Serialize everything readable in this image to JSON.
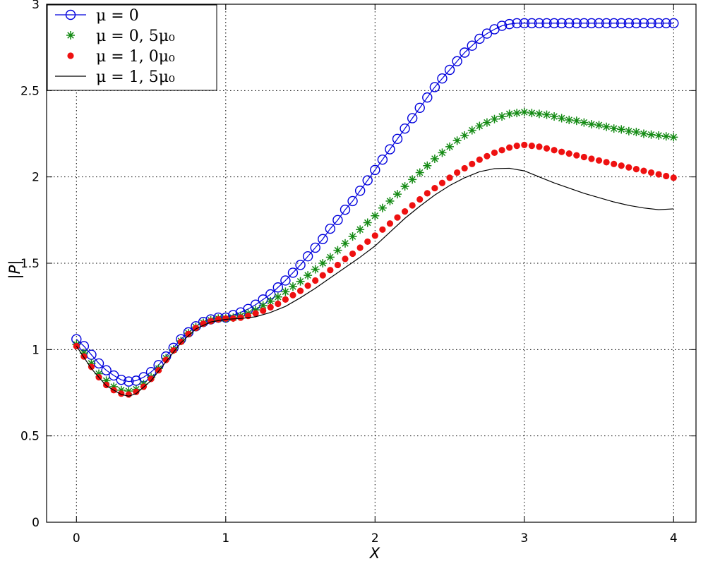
{
  "chart_data": {
    "type": "line",
    "title": "",
    "xlabel": "X",
    "ylabel": "|P|",
    "xlim": [
      -0.2,
      4.15
    ],
    "ylim": [
      0,
      3
    ],
    "xticks": [
      0,
      1,
      2,
      3,
      4
    ],
    "yticks": [
      0,
      0.5,
      1,
      1.5,
      2,
      2.5,
      3
    ],
    "xtick_labels": [
      "0",
      "1",
      "2",
      "3",
      "4"
    ],
    "ytick_labels": [
      "0",
      "0.5",
      "1",
      "1.5",
      "2",
      "2.5",
      "3"
    ],
    "grid": true,
    "legend_position": "top-left",
    "series": [
      {
        "name": "μ = 0",
        "marker": "open-circle",
        "color": "#0000dd",
        "x": [
          0,
          0.05,
          0.1,
          0.15,
          0.2,
          0.25,
          0.3,
          0.35,
          0.4,
          0.45,
          0.5,
          0.55,
          0.6,
          0.65,
          0.7,
          0.75,
          0.8,
          0.85,
          0.9,
          0.95,
          1.0,
          1.05,
          1.1,
          1.15,
          1.2,
          1.25,
          1.3,
          1.35,
          1.4,
          1.45,
          1.5,
          1.55,
          1.6,
          1.65,
          1.7,
          1.75,
          1.8,
          1.85,
          1.9,
          1.95,
          2.0,
          2.05,
          2.1,
          2.15,
          2.2,
          2.25,
          2.3,
          2.35,
          2.4,
          2.45,
          2.5,
          2.55,
          2.6,
          2.65,
          2.7,
          2.75,
          2.8,
          2.85,
          2.9,
          2.95,
          3.0,
          3.05,
          3.1,
          3.15,
          3.2,
          3.25,
          3.3,
          3.35,
          3.4,
          3.45,
          3.5,
          3.55,
          3.6,
          3.65,
          3.7,
          3.75,
          3.8,
          3.85,
          3.9,
          3.95,
          4.0
        ],
        "y": [
          1.06,
          1.02,
          0.97,
          0.92,
          0.88,
          0.85,
          0.825,
          0.815,
          0.82,
          0.84,
          0.87,
          0.91,
          0.96,
          1.01,
          1.06,
          1.1,
          1.135,
          1.16,
          1.175,
          1.185,
          1.185,
          1.2,
          1.215,
          1.235,
          1.26,
          1.29,
          1.32,
          1.36,
          1.4,
          1.445,
          1.49,
          1.54,
          1.59,
          1.64,
          1.7,
          1.75,
          1.81,
          1.86,
          1.92,
          1.98,
          2.04,
          2.1,
          2.16,
          2.22,
          2.28,
          2.34,
          2.4,
          2.46,
          2.52,
          2.57,
          2.62,
          2.67,
          2.72,
          2.76,
          2.8,
          2.83,
          2.855,
          2.875,
          2.885,
          2.89,
          2.89,
          2.89,
          2.89,
          2.89,
          2.89,
          2.89,
          2.89,
          2.89,
          2.89,
          2.89,
          2.89,
          2.89,
          2.89,
          2.89,
          2.89,
          2.89,
          2.89,
          2.89,
          2.89,
          2.89,
          2.89
        ]
      },
      {
        "name": "μ = 0, 5μ₀",
        "marker": "asterisk",
        "color": "#138a13",
        "x": [
          0,
          0.05,
          0.1,
          0.15,
          0.2,
          0.25,
          0.3,
          0.35,
          0.4,
          0.45,
          0.5,
          0.55,
          0.6,
          0.65,
          0.7,
          0.75,
          0.8,
          0.85,
          0.9,
          0.95,
          1.0,
          1.05,
          1.1,
          1.15,
          1.2,
          1.25,
          1.3,
          1.35,
          1.4,
          1.45,
          1.5,
          1.55,
          1.6,
          1.65,
          1.7,
          1.75,
          1.8,
          1.85,
          1.9,
          1.95,
          2.0,
          2.05,
          2.1,
          2.15,
          2.2,
          2.25,
          2.3,
          2.35,
          2.4,
          2.45,
          2.5,
          2.55,
          2.6,
          2.65,
          2.7,
          2.75,
          2.8,
          2.85,
          2.9,
          2.95,
          3.0,
          3.05,
          3.1,
          3.15,
          3.2,
          3.25,
          3.3,
          3.35,
          3.4,
          3.45,
          3.5,
          3.55,
          3.6,
          3.65,
          3.7,
          3.75,
          3.8,
          3.85,
          3.9,
          3.95,
          4.0
        ],
        "y": [
          1.03,
          0.98,
          0.92,
          0.86,
          0.82,
          0.785,
          0.765,
          0.76,
          0.77,
          0.8,
          0.84,
          0.89,
          0.95,
          1.0,
          1.05,
          1.095,
          1.13,
          1.155,
          1.17,
          1.18,
          1.18,
          1.185,
          1.195,
          1.21,
          1.23,
          1.255,
          1.28,
          1.305,
          1.335,
          1.365,
          1.395,
          1.43,
          1.465,
          1.5,
          1.535,
          1.575,
          1.615,
          1.655,
          1.695,
          1.735,
          1.775,
          1.82,
          1.86,
          1.9,
          1.945,
          1.985,
          2.025,
          2.065,
          2.105,
          2.14,
          2.175,
          2.21,
          2.24,
          2.27,
          2.295,
          2.315,
          2.335,
          2.35,
          2.365,
          2.37,
          2.375,
          2.37,
          2.365,
          2.36,
          2.35,
          2.34,
          2.33,
          2.325,
          2.315,
          2.305,
          2.3,
          2.29,
          2.28,
          2.275,
          2.265,
          2.26,
          2.25,
          2.245,
          2.24,
          2.235,
          2.23
        ]
      },
      {
        "name": "μ = 1, 0μ₀",
        "marker": "filled-dot",
        "color": "#ee1111",
        "x": [
          0,
          0.05,
          0.1,
          0.15,
          0.2,
          0.25,
          0.3,
          0.35,
          0.4,
          0.45,
          0.5,
          0.55,
          0.6,
          0.65,
          0.7,
          0.75,
          0.8,
          0.85,
          0.9,
          0.95,
          1.0,
          1.05,
          1.1,
          1.15,
          1.2,
          1.25,
          1.3,
          1.35,
          1.4,
          1.45,
          1.5,
          1.55,
          1.6,
          1.65,
          1.7,
          1.75,
          1.8,
          1.85,
          1.9,
          1.95,
          2.0,
          2.05,
          2.1,
          2.15,
          2.2,
          2.25,
          2.3,
          2.35,
          2.4,
          2.45,
          2.5,
          2.55,
          2.6,
          2.65,
          2.7,
          2.75,
          2.8,
          2.85,
          2.9,
          2.95,
          3.0,
          3.05,
          3.1,
          3.15,
          3.2,
          3.25,
          3.3,
          3.35,
          3.4,
          3.45,
          3.5,
          3.55,
          3.6,
          3.65,
          3.7,
          3.75,
          3.8,
          3.85,
          3.9,
          3.95,
          4.0
        ],
        "y": [
          1.02,
          0.96,
          0.9,
          0.84,
          0.795,
          0.765,
          0.745,
          0.74,
          0.755,
          0.785,
          0.83,
          0.88,
          0.94,
          0.995,
          1.045,
          1.09,
          1.125,
          1.15,
          1.165,
          1.175,
          1.18,
          1.18,
          1.185,
          1.195,
          1.21,
          1.225,
          1.245,
          1.265,
          1.29,
          1.315,
          1.34,
          1.37,
          1.4,
          1.43,
          1.46,
          1.49,
          1.525,
          1.555,
          1.59,
          1.625,
          1.66,
          1.695,
          1.73,
          1.765,
          1.8,
          1.835,
          1.87,
          1.905,
          1.935,
          1.965,
          1.995,
          2.025,
          2.05,
          2.075,
          2.1,
          2.12,
          2.14,
          2.155,
          2.17,
          2.18,
          2.185,
          2.18,
          2.175,
          2.165,
          2.155,
          2.145,
          2.135,
          2.125,
          2.115,
          2.105,
          2.095,
          2.085,
          2.075,
          2.065,
          2.055,
          2.045,
          2.035,
          2.025,
          2.015,
          2.005,
          1.995
        ]
      },
      {
        "name": "μ = 1, 5μ₀",
        "marker": "line",
        "color": "#000000",
        "x": [
          0,
          0.1,
          0.2,
          0.3,
          0.35,
          0.4,
          0.5,
          0.6,
          0.7,
          0.8,
          0.9,
          1.0,
          1.1,
          1.2,
          1.3,
          1.4,
          1.5,
          1.6,
          1.7,
          1.8,
          1.9,
          2.0,
          2.1,
          2.2,
          2.3,
          2.4,
          2.5,
          2.6,
          2.7,
          2.8,
          2.9,
          3.0,
          3.1,
          3.2,
          3.3,
          3.4,
          3.5,
          3.6,
          3.7,
          3.8,
          3.9,
          4.0
        ],
        "y": [
          1.02,
          0.89,
          0.79,
          0.74,
          0.73,
          0.745,
          0.82,
          0.93,
          1.04,
          1.12,
          1.16,
          1.175,
          1.18,
          1.19,
          1.215,
          1.25,
          1.3,
          1.355,
          1.415,
          1.475,
          1.535,
          1.6,
          1.68,
          1.76,
          1.83,
          1.895,
          1.95,
          1.995,
          2.03,
          2.048,
          2.05,
          2.035,
          2.0,
          1.965,
          1.935,
          1.905,
          1.88,
          1.855,
          1.835,
          1.82,
          1.81,
          1.815
        ]
      }
    ]
  }
}
